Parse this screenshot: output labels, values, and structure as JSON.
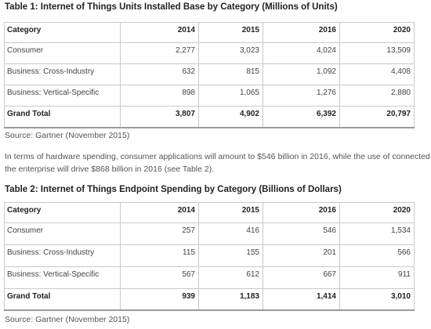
{
  "table1": {
    "title": "Table 1: Internet of Things Units Installed Base by Category (Millions of Units)",
    "header": [
      "Category",
      "2014",
      "2015",
      "2016",
      "2020"
    ],
    "rows": [
      [
        "Consumer",
        "2,277",
        "3,023",
        "4,024",
        "13,509"
      ],
      [
        "Business: Cross-Industry",
        "632",
        "815",
        "1,092",
        "4,408"
      ],
      [
        "Business: Vertical-Specific",
        "898",
        "1,065",
        "1,276",
        "2,880"
      ]
    ],
    "total": [
      "Grand Total",
      "3,807",
      "4,902",
      "6,392",
      "20,797"
    ],
    "source": "Source: Gartner (November 2015)"
  },
  "paragraph": {
    "line1": "In terms of hardware spending, consumer applications will amount to $546 billion in 2016, while the use of connected things in",
    "line2": "the enterprise will drive $868 billion in 2016 (see Table 2)."
  },
  "table2": {
    "title": "Table 2: Internet of Things Endpoint Spending by Category (Billions of Dollars)",
    "header": [
      "Category",
      "2014",
      "2015",
      "2016",
      "2020"
    ],
    "rows": [
      [
        "Consumer",
        "257",
        "416",
        "546",
        "1,534"
      ],
      [
        "Business: Cross-Industry",
        "115",
        "155",
        "201",
        "566"
      ],
      [
        "Business: Vertical-Specific",
        "567",
        "612",
        "667",
        "911"
      ]
    ],
    "total": [
      "Grand Total",
      "939",
      "1,183",
      "1,414",
      "3,010"
    ],
    "source": "Source: Gartner (November 2015)"
  }
}
